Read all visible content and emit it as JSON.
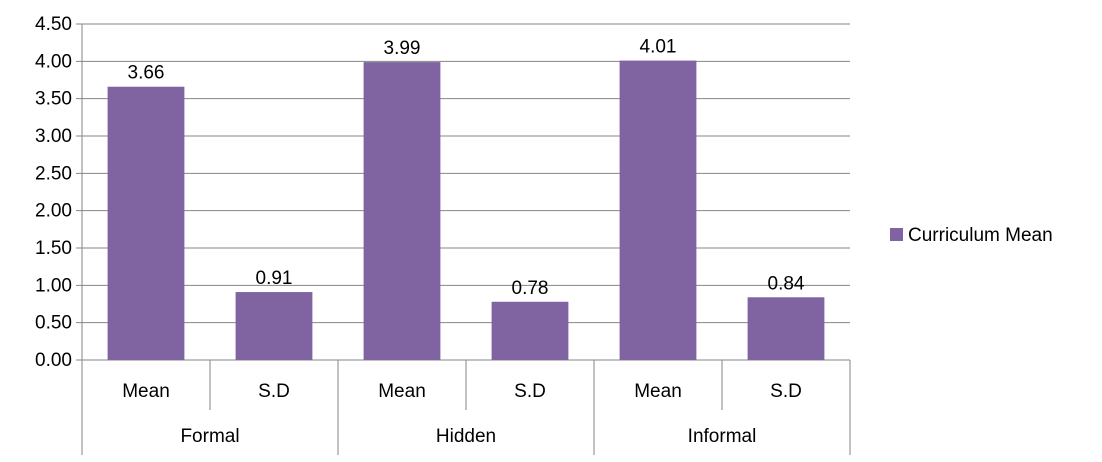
{
  "chart_data": {
    "type": "bar",
    "title": "",
    "xlabel": "",
    "ylabel": "",
    "ylim": [
      0,
      4.5
    ],
    "ytick_step": 0.5,
    "yticks": [
      "0.00",
      "0.50",
      "1.00",
      "1.50",
      "2.00",
      "2.50",
      "3.00",
      "3.50",
      "4.00",
      "4.50"
    ],
    "grid": true,
    "legend_position": "right",
    "groups": [
      {
        "label": "Formal",
        "categories": [
          "Mean",
          "S.D"
        ]
      },
      {
        "label": "Hidden",
        "categories": [
          "Mean",
          "S.D"
        ]
      },
      {
        "label": "Informal",
        "categories": [
          "Mean",
          "S.D"
        ]
      }
    ],
    "categories": [
      "Mean",
      "S.D",
      "Mean",
      "S.D",
      "Mean",
      "S.D"
    ],
    "series": [
      {
        "name": "Curriculum Mean",
        "color": "#8064a2",
        "values": [
          3.66,
          0.91,
          3.99,
          0.78,
          4.01,
          0.84
        ],
        "data_labels": [
          "3.66",
          "0.91",
          "3.99",
          "0.78",
          "4.01",
          "0.84"
        ]
      }
    ]
  }
}
